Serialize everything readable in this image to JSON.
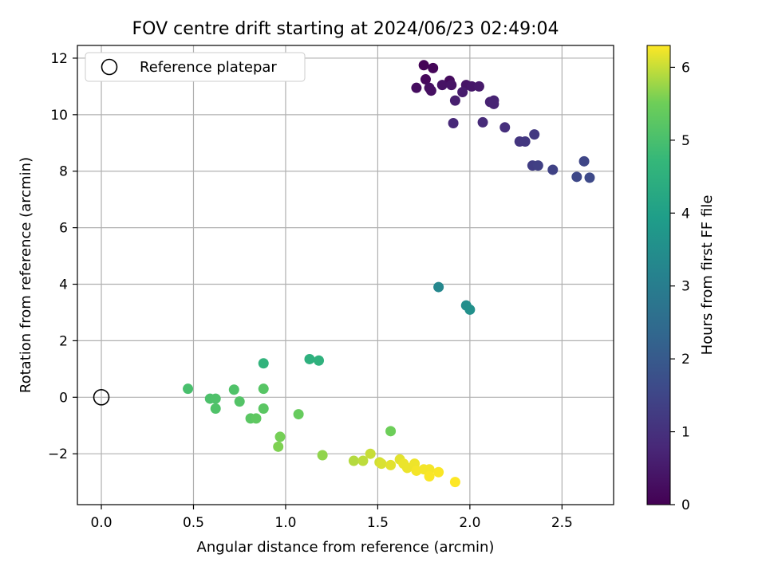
{
  "chart_data": {
    "type": "scatter",
    "title": "FOV centre drift starting at 2024/06/23 02:49:04",
    "xlabel": "Angular distance from reference (arcmin)",
    "ylabel": "Rotation from reference (arcmin)",
    "xlim": [
      -0.13,
      2.78
    ],
    "ylim": [
      -3.8,
      12.45
    ],
    "x_ticks": [
      0.0,
      0.5,
      1.0,
      1.5,
      2.0,
      2.5
    ],
    "x_tick_labels": [
      "0.0",
      "0.5",
      "1.0",
      "1.5",
      "2.0",
      "2.5"
    ],
    "y_ticks": [
      -2,
      0,
      2,
      4,
      6,
      8,
      10,
      12
    ],
    "y_tick_labels": [
      "−2",
      "0",
      "2",
      "4",
      "6",
      "8",
      "10",
      "12"
    ],
    "grid": true,
    "legend": {
      "placement": "upper-left",
      "entries": [
        "Reference platepar"
      ]
    },
    "reference_point": {
      "x": 0.0,
      "y": 0.0,
      "name": "Reference platepar"
    },
    "colorbar": {
      "label": "Hours from first FF file",
      "range": [
        0,
        6.3
      ],
      "ticks": [
        0,
        1,
        2,
        3,
        4,
        5,
        6
      ],
      "tick_labels": [
        "0",
        "1",
        "2",
        "3",
        "4",
        "5",
        "6"
      ],
      "colormap": "viridis"
    },
    "points": [
      {
        "x": 1.75,
        "y": 11.75,
        "h": 0.05
      },
      {
        "x": 1.8,
        "y": 11.65,
        "h": 0.1
      },
      {
        "x": 1.76,
        "y": 11.25,
        "h": 0.15
      },
      {
        "x": 1.89,
        "y": 11.2,
        "h": 0.2
      },
      {
        "x": 1.71,
        "y": 10.95,
        "h": 0.25
      },
      {
        "x": 1.78,
        "y": 10.95,
        "h": 0.28
      },
      {
        "x": 1.79,
        "y": 10.85,
        "h": 0.3
      },
      {
        "x": 1.85,
        "y": 11.05,
        "h": 0.35
      },
      {
        "x": 1.9,
        "y": 11.05,
        "h": 0.38
      },
      {
        "x": 1.98,
        "y": 11.05,
        "h": 0.4
      },
      {
        "x": 2.01,
        "y": 11.0,
        "h": 0.45
      },
      {
        "x": 2.05,
        "y": 11.0,
        "h": 0.5
      },
      {
        "x": 1.96,
        "y": 10.8,
        "h": 0.55
      },
      {
        "x": 1.92,
        "y": 10.5,
        "h": 0.6
      },
      {
        "x": 2.11,
        "y": 10.45,
        "h": 0.65
      },
      {
        "x": 2.13,
        "y": 10.5,
        "h": 0.68
      },
      {
        "x": 2.13,
        "y": 10.38,
        "h": 0.7
      },
      {
        "x": 1.91,
        "y": 9.7,
        "h": 0.8
      },
      {
        "x": 2.07,
        "y": 9.73,
        "h": 0.85
      },
      {
        "x": 2.19,
        "y": 9.55,
        "h": 0.95
      },
      {
        "x": 2.27,
        "y": 9.05,
        "h": 1.1
      },
      {
        "x": 2.3,
        "y": 9.05,
        "h": 1.15
      },
      {
        "x": 2.35,
        "y": 9.3,
        "h": 1.2
      },
      {
        "x": 2.34,
        "y": 8.2,
        "h": 1.3
      },
      {
        "x": 2.37,
        "y": 8.2,
        "h": 1.35
      },
      {
        "x": 2.45,
        "y": 8.05,
        "h": 1.4
      },
      {
        "x": 2.62,
        "y": 8.35,
        "h": 1.5
      },
      {
        "x": 2.58,
        "y": 7.8,
        "h": 1.55
      },
      {
        "x": 2.65,
        "y": 7.77,
        "h": 1.6
      },
      {
        "x": 1.83,
        "y": 3.9,
        "h": 3.3
      },
      {
        "x": 1.98,
        "y": 3.25,
        "h": 3.5
      },
      {
        "x": 2.0,
        "y": 3.1,
        "h": 3.55
      },
      {
        "x": 1.13,
        "y": 1.35,
        "h": 4.5
      },
      {
        "x": 1.18,
        "y": 1.3,
        "h": 4.55
      },
      {
        "x": 0.88,
        "y": 1.2,
        "h": 4.6
      },
      {
        "x": 0.47,
        "y": 0.3,
        "h": 5.0
      },
      {
        "x": 0.59,
        "y": -0.05,
        "h": 5.05
      },
      {
        "x": 0.62,
        "y": -0.05,
        "h": 5.08
      },
      {
        "x": 0.62,
        "y": -0.4,
        "h": 5.1
      },
      {
        "x": 0.72,
        "y": 0.27,
        "h": 5.1
      },
      {
        "x": 0.75,
        "y": -0.15,
        "h": 5.15
      },
      {
        "x": 0.88,
        "y": 0.3,
        "h": 5.2
      },
      {
        "x": 0.88,
        "y": -0.4,
        "h": 5.25
      },
      {
        "x": 0.81,
        "y": -0.75,
        "h": 5.25
      },
      {
        "x": 0.84,
        "y": -0.75,
        "h": 5.3
      },
      {
        "x": 1.07,
        "y": -0.6,
        "h": 5.4
      },
      {
        "x": 1.57,
        "y": -1.2,
        "h": 5.5
      },
      {
        "x": 0.97,
        "y": -1.4,
        "h": 5.55
      },
      {
        "x": 0.96,
        "y": -1.75,
        "h": 5.6
      },
      {
        "x": 1.2,
        "y": -2.05,
        "h": 5.7
      },
      {
        "x": 1.37,
        "y": -2.25,
        "h": 5.9
      },
      {
        "x": 1.42,
        "y": -2.25,
        "h": 5.95
      },
      {
        "x": 1.46,
        "y": -2.0,
        "h": 6.0
      },
      {
        "x": 1.51,
        "y": -2.3,
        "h": 6.05
      },
      {
        "x": 1.52,
        "y": -2.35,
        "h": 6.1
      },
      {
        "x": 1.57,
        "y": -2.4,
        "h": 6.15
      },
      {
        "x": 1.62,
        "y": -2.2,
        "h": 6.15
      },
      {
        "x": 1.64,
        "y": -2.35,
        "h": 6.2
      },
      {
        "x": 1.66,
        "y": -2.5,
        "h": 6.2
      },
      {
        "x": 1.7,
        "y": -2.35,
        "h": 6.22
      },
      {
        "x": 1.71,
        "y": -2.6,
        "h": 6.25
      },
      {
        "x": 1.75,
        "y": -2.55,
        "h": 6.25
      },
      {
        "x": 1.78,
        "y": -2.55,
        "h": 6.25
      },
      {
        "x": 1.78,
        "y": -2.8,
        "h": 6.28
      },
      {
        "x": 1.83,
        "y": -2.65,
        "h": 6.28
      },
      {
        "x": 1.92,
        "y": -3.0,
        "h": 6.3
      }
    ]
  }
}
